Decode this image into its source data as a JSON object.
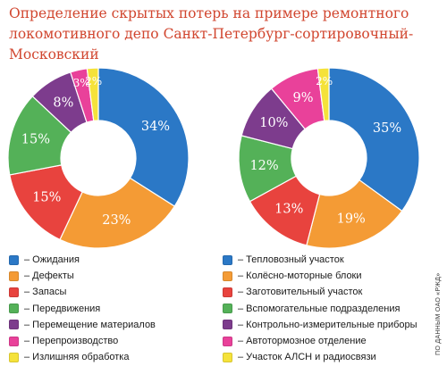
{
  "chart_data": {
    "type": "pie",
    "title": "Определение скрытых потерь на примере ремонтного локомотивного депо Санкт-Петербург-сортировочный-Московский",
    "source": "ПО ДАННЫМ ОАО «РЖД»",
    "charts": [
      {
        "slices": [
          {
            "label": "– Ожидания",
            "value": 34,
            "display": "34%",
            "color": "#2b78c6"
          },
          {
            "label": "– Дефекты",
            "value": 23,
            "display": "23%",
            "color": "#f49b35"
          },
          {
            "label": "– Запасы",
            "value": 15,
            "display": "15%",
            "color": "#e8433e"
          },
          {
            "label": "– Передвижения",
            "value": 15,
            "display": "15%",
            "color": "#54b158"
          },
          {
            "label": "– Перемещение материалов",
            "value": 8,
            "display": "8%",
            "color": "#7d3c8d"
          },
          {
            "label": "– Перепроизводство",
            "value": 3,
            "display": "3%",
            "color": "#e9419a"
          },
          {
            "label": "– Излишняя обработка",
            "value": 2,
            "display": "2%",
            "color": "#f5e23a"
          }
        ]
      },
      {
        "slices": [
          {
            "label": "– Тепловозный участок",
            "value": 35,
            "display": "35%",
            "color": "#2b78c6"
          },
          {
            "label": "– Колёсно-моторные блоки",
            "value": 19,
            "display": "19%",
            "color": "#f49b35"
          },
          {
            "label": "– Заготовительный участок",
            "value": 13,
            "display": "13%",
            "color": "#e8433e"
          },
          {
            "label": "– Вспомогательные подразделения",
            "value": 12,
            "display": "12%",
            "color": "#54b158"
          },
          {
            "label": "– Контрольно-измерительные приборы",
            "value": 10,
            "display": "10%",
            "color": "#7d3c8d"
          },
          {
            "label": "– Автотормозное отделение",
            "value": 9,
            "display": "9%",
            "color": "#e9419a"
          },
          {
            "label": "– Участок АЛСН и радиосвязи",
            "value": 2,
            "display": "2%",
            "color": "#f5e23a"
          }
        ]
      }
    ]
  }
}
